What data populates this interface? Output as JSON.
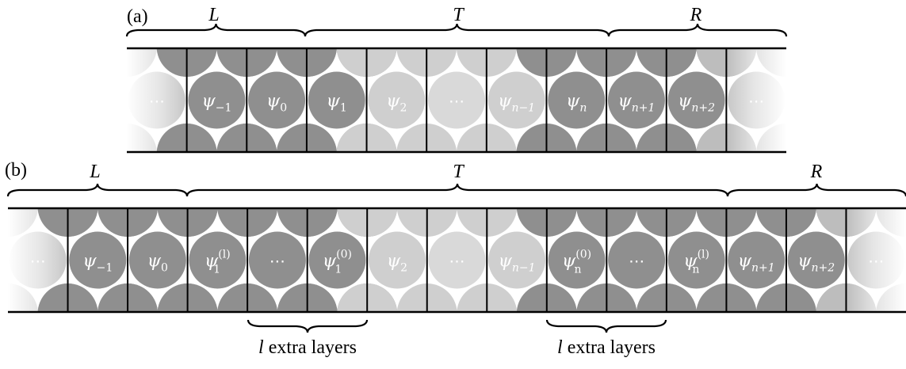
{
  "panel_a": {
    "label": "(a)",
    "regions": [
      {
        "id": "L",
        "label": "L"
      },
      {
        "id": "T",
        "label": "T"
      },
      {
        "id": "R",
        "label": "R"
      }
    ],
    "cells": [
      {
        "type": "edge-left",
        "base": "⋯",
        "sub": "",
        "sup": ""
      },
      {
        "type": "dark",
        "base": "ψ",
        "sub": "−1",
        "sup": ""
      },
      {
        "type": "dark",
        "base": "ψ",
        "sub": "0",
        "sup": ""
      },
      {
        "type": "dark",
        "base": "ψ",
        "sub": "1",
        "sup": ""
      },
      {
        "type": "light",
        "base": "ψ",
        "sub": "2",
        "sup": ""
      },
      {
        "type": "empty",
        "base": "⋯",
        "sub": "",
        "sup": ""
      },
      {
        "type": "light",
        "base": "ψ",
        "sub": "n−1",
        "sup": ""
      },
      {
        "type": "dark",
        "base": "ψ",
        "sub": "n",
        "sup": ""
      },
      {
        "type": "dark",
        "base": "ψ",
        "sub": "n+1",
        "sup": ""
      },
      {
        "type": "dark",
        "base": "ψ",
        "sub": "n+2",
        "sup": ""
      },
      {
        "type": "edge-right",
        "base": "⋯",
        "sub": "",
        "sup": ""
      }
    ]
  },
  "panel_b": {
    "label": "(b)",
    "regions": [
      {
        "id": "L",
        "label": "L"
      },
      {
        "id": "T",
        "label": "T"
      },
      {
        "id": "R",
        "label": "R"
      }
    ],
    "cells": [
      {
        "type": "edge-left",
        "base": "⋯",
        "sub": "",
        "sup": ""
      },
      {
        "type": "dark",
        "base": "ψ",
        "sub": "−1",
        "sup": ""
      },
      {
        "type": "dark",
        "base": "ψ",
        "sub": "0",
        "sup": ""
      },
      {
        "type": "dark",
        "base": "ψ",
        "sub": "1",
        "sup": "(l)"
      },
      {
        "type": "dark",
        "base": "⋯",
        "sub": "",
        "sup": ""
      },
      {
        "type": "dark",
        "base": "ψ",
        "sub": "1",
        "sup": "(0)"
      },
      {
        "type": "light",
        "base": "ψ",
        "sub": "2",
        "sup": ""
      },
      {
        "type": "empty",
        "base": "⋯",
        "sub": "",
        "sup": ""
      },
      {
        "type": "light",
        "base": "ψ",
        "sub": "n−1",
        "sup": ""
      },
      {
        "type": "dark",
        "base": "ψ",
        "sub": "n",
        "sup": "(0)"
      },
      {
        "type": "dark",
        "base": "⋯",
        "sub": "",
        "sup": ""
      },
      {
        "type": "dark",
        "base": "ψ",
        "sub": "n",
        "sup": "(l)"
      },
      {
        "type": "dark",
        "base": "ψ",
        "sub": "n+1",
        "sup": ""
      },
      {
        "type": "dark",
        "base": "ψ",
        "sub": "n+2",
        "sup": ""
      },
      {
        "type": "edge-right",
        "base": "⋯",
        "sub": "",
        "sup": ""
      }
    ],
    "extra_layers": [
      {
        "l": "l",
        "text": "extra layers"
      },
      {
        "l": "l",
        "text": "extra layers"
      }
    ]
  },
  "colors": {
    "dark_circle": "#8f8f8f",
    "light_circle": "#cfcfcf",
    "empty_circle": "#d9d9d9",
    "line": "#000000"
  }
}
